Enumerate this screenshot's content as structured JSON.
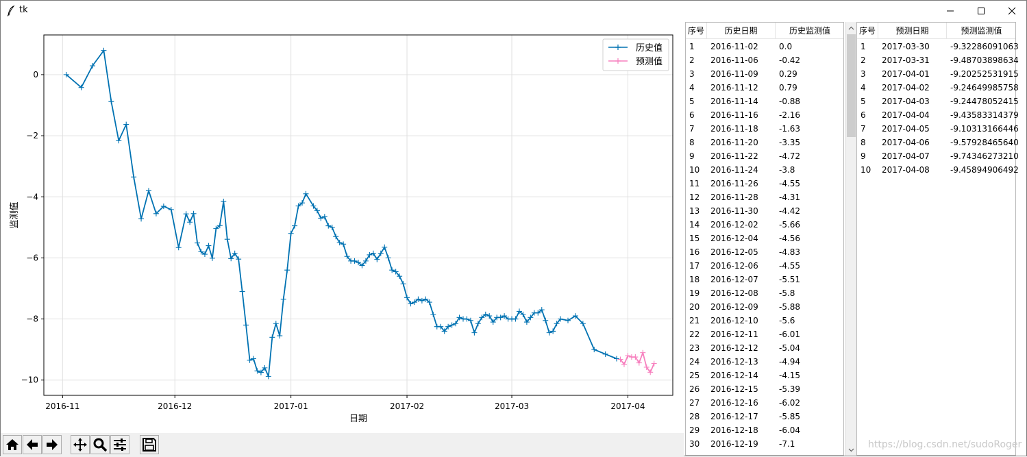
{
  "window": {
    "title": "tk"
  },
  "chart_data": {
    "type": "line",
    "xlabel": "日期",
    "ylabel": "监测值",
    "ylim": [
      -10.5,
      1.3
    ],
    "xlim": [
      "2016-10-27",
      "2017-04-13"
    ],
    "yticks": [
      0,
      -2,
      -4,
      -6,
      -8,
      -10
    ],
    "ytick_labels": [
      "0",
      "−2",
      "−4",
      "−6",
      "−8",
      "−10"
    ],
    "xticks": [
      "2016-11-01",
      "2016-12-01",
      "2017-01-01",
      "2017-02-01",
      "2017-03-01",
      "2017-04-01"
    ],
    "xtick_labels": [
      "2016-11",
      "2016-12",
      "2017-01",
      "2017-02",
      "2017-03",
      "2017-04"
    ],
    "grid": true,
    "legend_position": "top-right",
    "series": [
      {
        "name": "历史值",
        "color": "#0072b2",
        "marker": "+",
        "points": [
          [
            "2016-11-02",
            0.0
          ],
          [
            "2016-11-06",
            -0.42
          ],
          [
            "2016-11-09",
            0.29
          ],
          [
            "2016-11-12",
            0.79
          ],
          [
            "2016-11-14",
            -0.88
          ],
          [
            "2016-11-16",
            -2.16
          ],
          [
            "2016-11-18",
            -1.63
          ],
          [
            "2016-11-20",
            -3.35
          ],
          [
            "2016-11-22",
            -4.72
          ],
          [
            "2016-11-24",
            -3.8
          ],
          [
            "2016-11-26",
            -4.55
          ],
          [
            "2016-11-28",
            -4.31
          ],
          [
            "2016-11-30",
            -4.42
          ],
          [
            "2016-12-02",
            -5.66
          ],
          [
            "2016-12-04",
            -4.56
          ],
          [
            "2016-12-05",
            -4.83
          ],
          [
            "2016-12-06",
            -4.55
          ],
          [
            "2016-12-07",
            -5.51
          ],
          [
            "2016-12-08",
            -5.8
          ],
          [
            "2016-12-09",
            -5.88
          ],
          [
            "2016-12-10",
            -5.6
          ],
          [
            "2016-12-11",
            -6.01
          ],
          [
            "2016-12-12",
            -5.04
          ],
          [
            "2016-12-13",
            -4.94
          ],
          [
            "2016-12-14",
            -4.15
          ],
          [
            "2016-12-15",
            -5.39
          ],
          [
            "2016-12-16",
            -6.02
          ],
          [
            "2016-12-17",
            -5.85
          ],
          [
            "2016-12-18",
            -6.04
          ],
          [
            "2016-12-19",
            -7.1
          ],
          [
            "2016-12-20",
            -8.2
          ],
          [
            "2016-12-21",
            -9.35
          ],
          [
            "2016-12-22",
            -9.3
          ],
          [
            "2016-12-23",
            -9.7
          ],
          [
            "2016-12-24",
            -9.75
          ],
          [
            "2016-12-25",
            -9.6
          ],
          [
            "2016-12-26",
            -9.88
          ],
          [
            "2016-12-27",
            -8.6
          ],
          [
            "2016-12-28",
            -8.15
          ],
          [
            "2016-12-29",
            -8.55
          ],
          [
            "2016-12-30",
            -7.35
          ],
          [
            "2016-12-31",
            -6.4
          ],
          [
            "2017-01-01",
            -5.2
          ],
          [
            "2017-01-02",
            -4.95
          ],
          [
            "2017-01-03",
            -4.3
          ],
          [
            "2017-01-04",
            -4.2
          ],
          [
            "2017-01-05",
            -3.9
          ],
          [
            "2017-01-07",
            -4.3
          ],
          [
            "2017-01-08",
            -4.45
          ],
          [
            "2017-01-09",
            -4.7
          ],
          [
            "2017-01-10",
            -4.65
          ],
          [
            "2017-01-11",
            -4.95
          ],
          [
            "2017-01-12",
            -5.0
          ],
          [
            "2017-01-13",
            -5.3
          ],
          [
            "2017-01-14",
            -5.5
          ],
          [
            "2017-01-15",
            -5.55
          ],
          [
            "2017-01-16",
            -5.95
          ],
          [
            "2017-01-17",
            -6.1
          ],
          [
            "2017-01-18",
            -6.1
          ],
          [
            "2017-01-19",
            -6.15
          ],
          [
            "2017-01-20",
            -6.25
          ],
          [
            "2017-01-21",
            -6.1
          ],
          [
            "2017-01-22",
            -5.9
          ],
          [
            "2017-01-23",
            -5.85
          ],
          [
            "2017-01-24",
            -6.05
          ],
          [
            "2017-01-25",
            -5.85
          ],
          [
            "2017-01-26",
            -5.65
          ],
          [
            "2017-01-27",
            -6.0
          ],
          [
            "2017-01-28",
            -6.4
          ],
          [
            "2017-01-29",
            -6.45
          ],
          [
            "2017-01-30",
            -6.6
          ],
          [
            "2017-01-31",
            -6.85
          ],
          [
            "2017-02-01",
            -7.3
          ],
          [
            "2017-02-02",
            -7.5
          ],
          [
            "2017-02-03",
            -7.45
          ],
          [
            "2017-02-04",
            -7.35
          ],
          [
            "2017-02-05",
            -7.4
          ],
          [
            "2017-02-06",
            -7.35
          ],
          [
            "2017-02-07",
            -7.45
          ],
          [
            "2017-02-08",
            -7.85
          ],
          [
            "2017-02-09",
            -8.25
          ],
          [
            "2017-02-10",
            -8.25
          ],
          [
            "2017-02-11",
            -8.4
          ],
          [
            "2017-02-12",
            -8.25
          ],
          [
            "2017-02-13",
            -8.2
          ],
          [
            "2017-02-14",
            -8.15
          ],
          [
            "2017-02-15",
            -7.95
          ],
          [
            "2017-02-16",
            -8.0
          ],
          [
            "2017-02-17",
            -8.0
          ],
          [
            "2017-02-18",
            -8.05
          ],
          [
            "2017-02-19",
            -8.45
          ],
          [
            "2017-02-20",
            -8.15
          ],
          [
            "2017-02-21",
            -7.95
          ],
          [
            "2017-02-22",
            -7.85
          ],
          [
            "2017-02-23",
            -7.9
          ],
          [
            "2017-02-24",
            -8.1
          ],
          [
            "2017-02-25",
            -7.95
          ],
          [
            "2017-02-26",
            -7.95
          ],
          [
            "2017-02-27",
            -7.9
          ],
          [
            "2017-02-28",
            -8.0
          ],
          [
            "2017-03-01",
            -8.0
          ],
          [
            "2017-03-02",
            -8.0
          ],
          [
            "2017-03-03",
            -7.75
          ],
          [
            "2017-03-04",
            -7.85
          ],
          [
            "2017-03-05",
            -8.1
          ],
          [
            "2017-03-06",
            -7.95
          ],
          [
            "2017-03-07",
            -7.8
          ],
          [
            "2017-03-08",
            -7.8
          ],
          [
            "2017-03-09",
            -7.7
          ],
          [
            "2017-03-10",
            -8.05
          ],
          [
            "2017-03-11",
            -8.45
          ],
          [
            "2017-03-12",
            -8.4
          ],
          [
            "2017-03-13",
            -8.15
          ],
          [
            "2017-03-14",
            -8.0
          ],
          [
            "2017-03-16",
            -8.05
          ],
          [
            "2017-03-18",
            -7.9
          ],
          [
            "2017-03-20",
            -8.15
          ],
          [
            "2017-03-23",
            -9.0
          ],
          [
            "2017-03-26",
            -9.15
          ],
          [
            "2017-03-29",
            -9.3
          ]
        ]
      },
      {
        "name": "预测值",
        "color": "#f781bf",
        "marker": "+",
        "points": [
          [
            "2017-03-30",
            -9.32286091063
          ],
          [
            "2017-03-31",
            -9.48703898634
          ],
          [
            "2017-04-01",
            -9.20252531915
          ],
          [
            "2017-04-02",
            -9.24649985758
          ],
          [
            "2017-04-03",
            -9.24478052415
          ],
          [
            "2017-04-04",
            -9.43583314379
          ],
          [
            "2017-04-05",
            -9.10313166446
          ],
          [
            "2017-04-06",
            -9.5792846564
          ],
          [
            "2017-04-07",
            -9.7434627321
          ],
          [
            "2017-04-08",
            -9.45894906492
          ]
        ]
      }
    ]
  },
  "toolbar": {
    "buttons": [
      {
        "name": "home-icon"
      },
      {
        "name": "back-icon"
      },
      {
        "name": "forward-icon"
      },
      {
        "name": "pan-icon"
      },
      {
        "name": "zoom-icon"
      },
      {
        "name": "configure-icon"
      },
      {
        "name": "save-icon"
      }
    ]
  },
  "history_table": {
    "columns": [
      "序号",
      "历史日期",
      "历史监测值"
    ],
    "rows": [
      [
        "1",
        "2016-11-02",
        "0.0"
      ],
      [
        "2",
        "2016-11-06",
        "-0.42"
      ],
      [
        "3",
        "2016-11-09",
        "0.29"
      ],
      [
        "4",
        "2016-11-12",
        "0.79"
      ],
      [
        "5",
        "2016-11-14",
        "-0.88"
      ],
      [
        "6",
        "2016-11-16",
        "-2.16"
      ],
      [
        "7",
        "2016-11-18",
        "-1.63"
      ],
      [
        "8",
        "2016-11-20",
        "-3.35"
      ],
      [
        "9",
        "2016-11-22",
        "-4.72"
      ],
      [
        "10",
        "2016-11-24",
        "-3.8"
      ],
      [
        "11",
        "2016-11-26",
        "-4.55"
      ],
      [
        "12",
        "2016-11-28",
        "-4.31"
      ],
      [
        "13",
        "2016-11-30",
        "-4.42"
      ],
      [
        "14",
        "2016-12-02",
        "-5.66"
      ],
      [
        "15",
        "2016-12-04",
        "-4.56"
      ],
      [
        "16",
        "2016-12-05",
        "-4.83"
      ],
      [
        "17",
        "2016-12-06",
        "-4.55"
      ],
      [
        "18",
        "2016-12-07",
        "-5.51"
      ],
      [
        "19",
        "2016-12-08",
        "-5.8"
      ],
      [
        "20",
        "2016-12-09",
        "-5.88"
      ],
      [
        "21",
        "2016-12-10",
        "-5.6"
      ],
      [
        "22",
        "2016-12-11",
        "-6.01"
      ],
      [
        "23",
        "2016-12-12",
        "-5.04"
      ],
      [
        "24",
        "2016-12-13",
        "-4.94"
      ],
      [
        "25",
        "2016-12-14",
        "-4.15"
      ],
      [
        "26",
        "2016-12-15",
        "-5.39"
      ],
      [
        "27",
        "2016-12-16",
        "-6.02"
      ],
      [
        "28",
        "2016-12-17",
        "-5.85"
      ],
      [
        "29",
        "2016-12-18",
        "-6.04"
      ],
      [
        "30",
        "2016-12-19",
        "-7.1"
      ]
    ]
  },
  "forecast_table": {
    "columns": [
      "序号",
      "预测日期",
      "预测监测值"
    ],
    "rows": [
      [
        "1",
        "2017-03-30",
        "-9.32286091063"
      ],
      [
        "2",
        "2017-03-31",
        "-9.48703898634"
      ],
      [
        "3",
        "2017-04-01",
        "-9.20252531915"
      ],
      [
        "4",
        "2017-04-02",
        "-9.24649985758"
      ],
      [
        "5",
        "2017-04-03",
        "-9.24478052415"
      ],
      [
        "6",
        "2017-04-04",
        "-9.43583314379"
      ],
      [
        "7",
        "2017-04-05",
        "-9.10313166446"
      ],
      [
        "8",
        "2017-04-06",
        "-9.57928465640"
      ],
      [
        "9",
        "2017-04-07",
        "-9.74346273210"
      ],
      [
        "10",
        "2017-04-08",
        "-9.45894906492"
      ]
    ]
  },
  "watermark": "https://blog.csdn.net/sudoRoger"
}
